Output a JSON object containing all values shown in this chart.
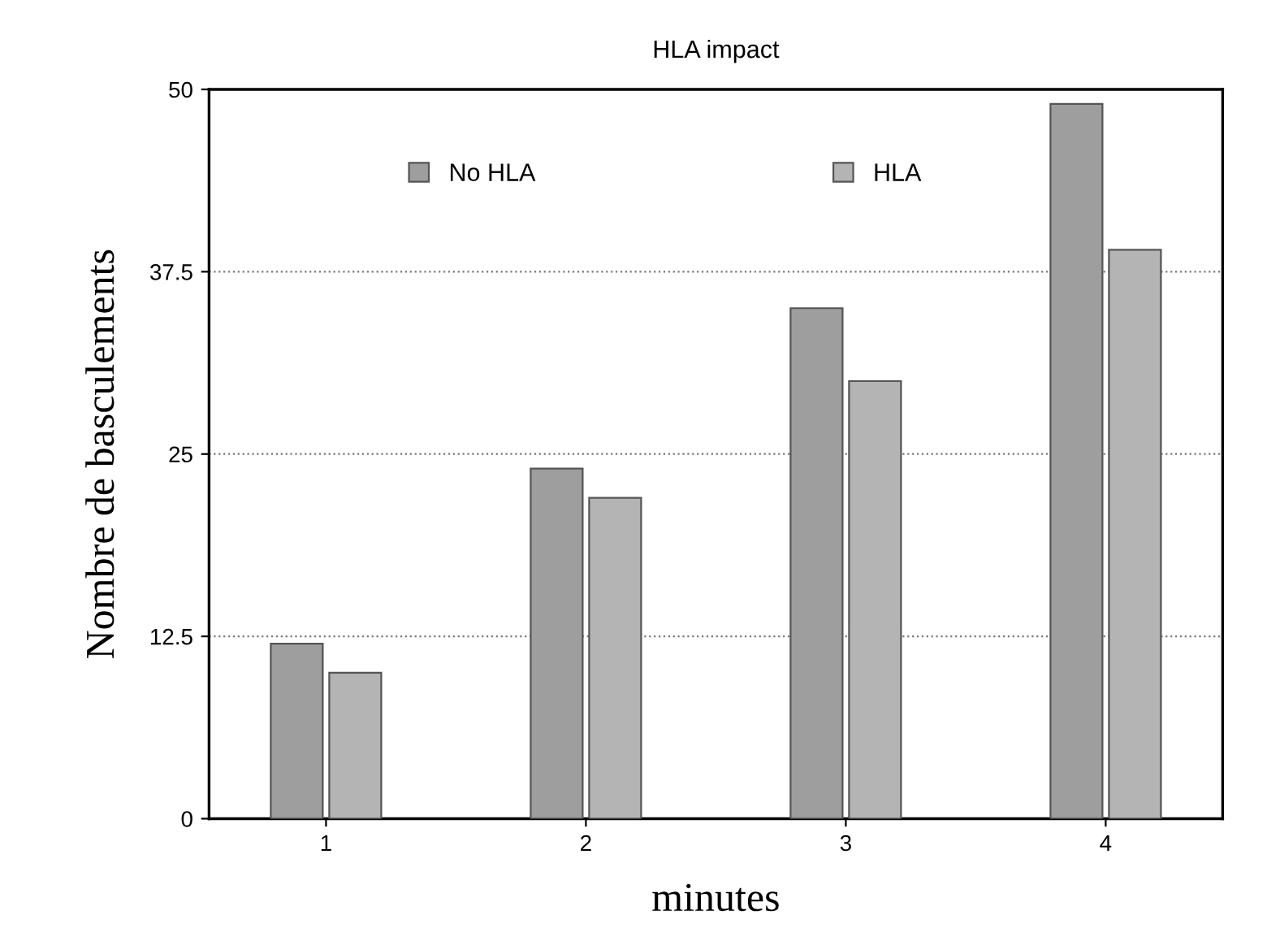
{
  "chart_data": {
    "type": "bar",
    "title": "HLA impact",
    "xlabel": "minutes",
    "ylabel": "Nombre de basculements",
    "categories": [
      "1",
      "2",
      "3",
      "4"
    ],
    "series": [
      {
        "name": "No HLA",
        "color": "#9e9e9e",
        "values": [
          12,
          24,
          35,
          49
        ]
      },
      {
        "name": "HLA",
        "color": "#b4b4b4",
        "values": [
          10,
          22,
          30,
          39
        ]
      }
    ],
    "ylim": [
      0,
      50
    ],
    "yticks": [
      0,
      12.5,
      25,
      37.5,
      50
    ],
    "grid": "y",
    "legend": "top"
  }
}
